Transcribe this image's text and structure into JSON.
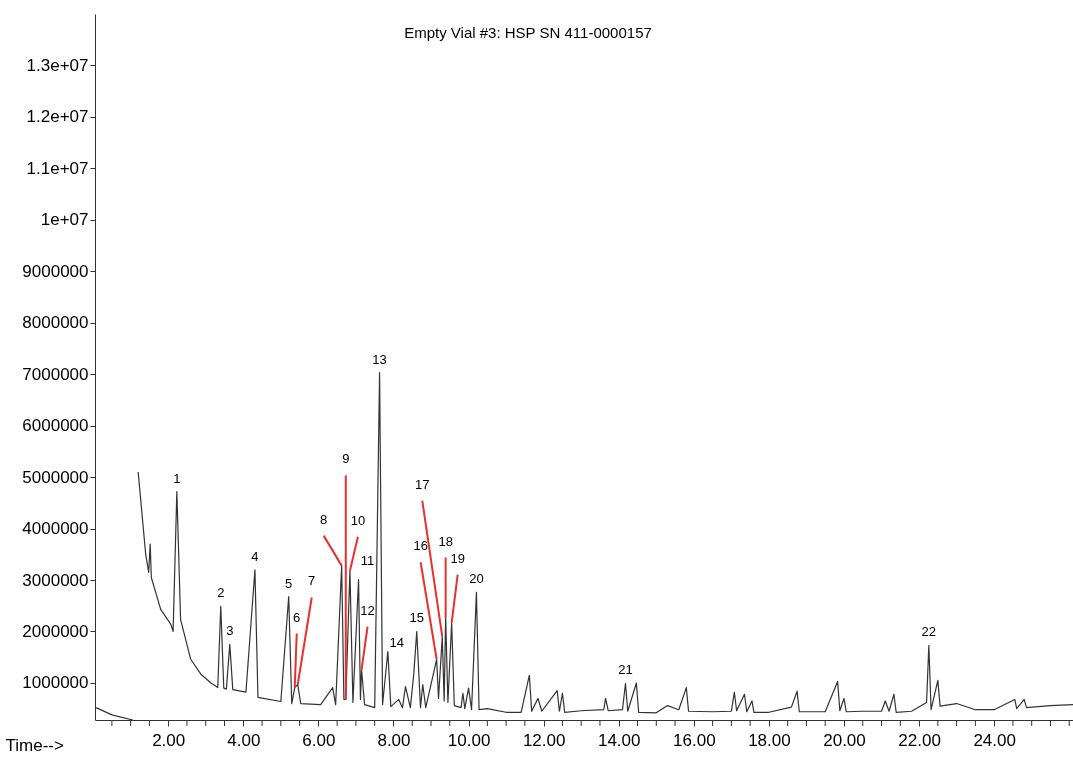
{
  "chart_data": {
    "type": "line",
    "title": "Empty Vial #3: HSP SN 411-0000157",
    "xlabel": "Time-->",
    "x": [
      0.08,
      0.5,
      1.0,
      1.05,
      1.07,
      1.12,
      1.2,
      1.4,
      1.48,
      1.52,
      1.55,
      1.8,
      2.07,
      2.13,
      2.23,
      2.33,
      2.6,
      2.87,
      3.14,
      3.32,
      3.4,
      3.48,
      3.55,
      3.64,
      3.72,
      4.07,
      4.31,
      4.39,
      5.0,
      5.21,
      5.29,
      5.37,
      5.45,
      5.53,
      6.06,
      6.38,
      6.46,
      6.62,
      6.68,
      6.73,
      6.84,
      6.92,
      7.07,
      7.12,
      7.15,
      7.23,
      7.5,
      7.63,
      7.71,
      7.85,
      7.93,
      8.14,
      8.24,
      8.32,
      8.45,
      8.54,
      8.62,
      8.72,
      8.78,
      8.86,
      9.15,
      9.2,
      9.3,
      9.35,
      9.39,
      9.45,
      9.55,
      9.62,
      9.8,
      9.85,
      9.9,
      10.0,
      10.08,
      10.21,
      10.28,
      10.5,
      11.0,
      11.4,
      11.62,
      11.68,
      11.85,
      11.95,
      12.36,
      12.42,
      12.5,
      12.56,
      13.0,
      13.6,
      13.65,
      13.72,
      14.1,
      14.18,
      14.24,
      14.47,
      14.53,
      15.0,
      15.3,
      15.6,
      15.8,
      15.86,
      16.5,
      17.0,
      17.08,
      17.14,
      17.35,
      17.41,
      17.55,
      17.6,
      18.0,
      18.6,
      18.75,
      18.81,
      19.5,
      19.83,
      19.89,
      20.0,
      20.06,
      20.5,
      21.0,
      21.1,
      21.2,
      21.33,
      21.39,
      21.8,
      22.2,
      22.26,
      22.32,
      22.5,
      22.56,
      23.0,
      23.5,
      24.0,
      24.55,
      24.6,
      24.8,
      24.86,
      25.5,
      26.1
    ],
    "series": [
      {
        "color": "#333333",
        "values": [
          520000,
          380000,
          290000,
          290000,
          null,
          null,
          5100000,
          3500000,
          3150000,
          3700000,
          3050000,
          2430000,
          2140000,
          2000000,
          4720000,
          2230000,
          1460000,
          1170000,
          1000000,
          910000,
          2490000,
          900000,
          880000,
          1750000,
          870000,
          820000,
          3200000,
          720000,
          640000,
          2680000,
          600000,
          910000,
          970000,
          600000,
          580000,
          910000,
          580000,
          3280000,
          680000,
          680000,
          3180000,
          620000,
          3010000,
          680000,
          1260000,
          580000,
          520000,
          7030000,
          580000,
          1610000,
          540000,
          680000,
          520000,
          930000,
          520000,
          1170000,
          2000000,
          520000,
          970000,
          520000,
          1460000,
          700000,
          1900000,
          650000,
          2270000,
          620000,
          2170000,
          560000,
          520000,
          800000,
          500000,
          900000,
          480000,
          2760000,
          480000,
          500000,
          430000,
          430000,
          1150000,
          450000,
          700000,
          450000,
          850000,
          450000,
          800000,
          430000,
          460000,
          480000,
          700000,
          460000,
          480000,
          990000,
          450000,
          1000000,
          430000,
          420000,
          560000,
          480000,
          910000,
          450000,
          440000,
          450000,
          820000,
          460000,
          780000,
          440000,
          650000,
          430000,
          430000,
          530000,
          840000,
          440000,
          440000,
          1030000,
          460000,
          700000,
          440000,
          450000,
          450000,
          650000,
          450000,
          780000,
          430000,
          450000,
          620000,
          1730000,
          480000,
          1050000,
          550000,
          600000,
          480000,
          480000,
          680000,
          500000,
          680000,
          520000,
          560000,
          580000
        ]
      }
    ],
    "annotations": [
      {
        "text": "1",
        "x": 2.23,
        "y": 4720000
      },
      {
        "text": "2",
        "x": 3.4,
        "y": 2490000
      },
      {
        "text": "3",
        "x": 3.64,
        "y": 1750000
      },
      {
        "text": "4",
        "x": 4.31,
        "y": 3200000
      },
      {
        "text": "5",
        "x": 5.21,
        "y": 2680000
      },
      {
        "text": "6",
        "x": 5.37,
        "y": 910000
      },
      {
        "text": "7",
        "x": 5.45,
        "y": 970000
      },
      {
        "text": "8",
        "x": 6.62,
        "y": 3280000
      },
      {
        "text": "9",
        "x": 6.73,
        "y": 680000
      },
      {
        "text": "10",
        "x": 6.84,
        "y": 3180000
      },
      {
        "text": "11",
        "x": 7.07,
        "y": 3010000
      },
      {
        "text": "12",
        "x": 7.15,
        "y": 1260000
      },
      {
        "text": "13",
        "x": 7.63,
        "y": 7030000
      },
      {
        "text": "14",
        "x": 7.85,
        "y": 1610000
      },
      {
        "text": "15",
        "x": 8.62,
        "y": 2000000
      },
      {
        "text": "16",
        "x": 9.15,
        "y": 1460000
      },
      {
        "text": "17",
        "x": 9.3,
        "y": 1900000
      },
      {
        "text": "18",
        "x": 9.39,
        "y": 2270000
      },
      {
        "text": "19",
        "x": 9.55,
        "y": 2170000
      },
      {
        "text": "20",
        "x": 10.21,
        "y": 2760000
      },
      {
        "text": "21",
        "x": 14.18,
        "y": 990000
      },
      {
        "text": "22",
        "x": 22.26,
        "y": 1730000
      }
    ],
    "xlim": [
      0.05,
      26.1
    ],
    "ylim": [
      280000,
      14000000
    ],
    "xticks": [
      {
        "value": 0.5,
        "label": null
      },
      {
        "value": 1,
        "label": null
      },
      {
        "value": 1.5,
        "label": null
      },
      {
        "value": 2,
        "label": "2.00"
      },
      {
        "value": 2.5,
        "label": null
      },
      {
        "value": 3,
        "label": null
      },
      {
        "value": 3.5,
        "label": null
      },
      {
        "value": 4,
        "label": "4.00"
      },
      {
        "value": 4.5,
        "label": null
      },
      {
        "value": 5,
        "label": null
      },
      {
        "value": 5.5,
        "label": null
      },
      {
        "value": 6,
        "label": "6.00"
      },
      {
        "value": 6.5,
        "label": null
      },
      {
        "value": 7,
        "label": null
      },
      {
        "value": 7.5,
        "label": null
      },
      {
        "value": 8,
        "label": "8.00"
      },
      {
        "value": 8.5,
        "label": null
      },
      {
        "value": 9,
        "label": null
      },
      {
        "value": 9.5,
        "label": null
      },
      {
        "value": 10,
        "label": "10.00"
      },
      {
        "value": 10.5,
        "label": null
      },
      {
        "value": 11,
        "label": null
      },
      {
        "value": 11.5,
        "label": null
      },
      {
        "value": 12,
        "label": "12.00"
      },
      {
        "value": 12.5,
        "label": null
      },
      {
        "value": 13,
        "label": null
      },
      {
        "value": 13.5,
        "label": null
      },
      {
        "value": 14,
        "label": "14.00"
      },
      {
        "value": 14.5,
        "label": null
      },
      {
        "value": 15,
        "label": null
      },
      {
        "value": 15.5,
        "label": null
      },
      {
        "value": 16,
        "label": "16.00"
      },
      {
        "value": 16.5,
        "label": null
      },
      {
        "value": 17,
        "label": null
      },
      {
        "value": 17.5,
        "label": null
      },
      {
        "value": 18,
        "label": "18.00"
      },
      {
        "value": 18.5,
        "label": null
      },
      {
        "value": 19,
        "label": null
      },
      {
        "value": 19.5,
        "label": null
      },
      {
        "value": 20,
        "label": "20.00"
      },
      {
        "value": 20.5,
        "label": null
      },
      {
        "value": 21,
        "label": null
      },
      {
        "value": 21.5,
        "label": null
      },
      {
        "value": 22,
        "label": "22.00"
      },
      {
        "value": 22.5,
        "label": null
      },
      {
        "value": 23,
        "label": null
      },
      {
        "value": 23.5,
        "label": null
      },
      {
        "value": 24,
        "label": "24.00"
      },
      {
        "value": 24.5,
        "label": null
      },
      {
        "value": 25,
        "label": null
      },
      {
        "value": 25.5,
        "label": null
      },
      {
        "value": 26,
        "label": null
      }
    ],
    "yticks": [
      {
        "value": 1000000,
        "label": "1000000"
      },
      {
        "value": 2000000,
        "label": "2000000"
      },
      {
        "value": 3000000,
        "label": "3000000"
      },
      {
        "value": 4000000,
        "label": "4000000"
      },
      {
        "value": 5000000,
        "label": "5000000"
      },
      {
        "value": 6000000,
        "label": "6000000"
      },
      {
        "value": 7000000,
        "label": "7000000"
      },
      {
        "value": 8000000,
        "label": "8000000"
      },
      {
        "value": 9000000,
        "label": "9000000"
      },
      {
        "value": 10000000,
        "label": "1e+07"
      },
      {
        "value": 11000000,
        "label": "1.1e+07"
      },
      {
        "value": 12000000,
        "label": "1.2e+07"
      },
      {
        "value": 13000000,
        "label": "1.3e+07"
      }
    ],
    "grid": false,
    "marker": "none",
    "line_style": "solid"
  }
}
